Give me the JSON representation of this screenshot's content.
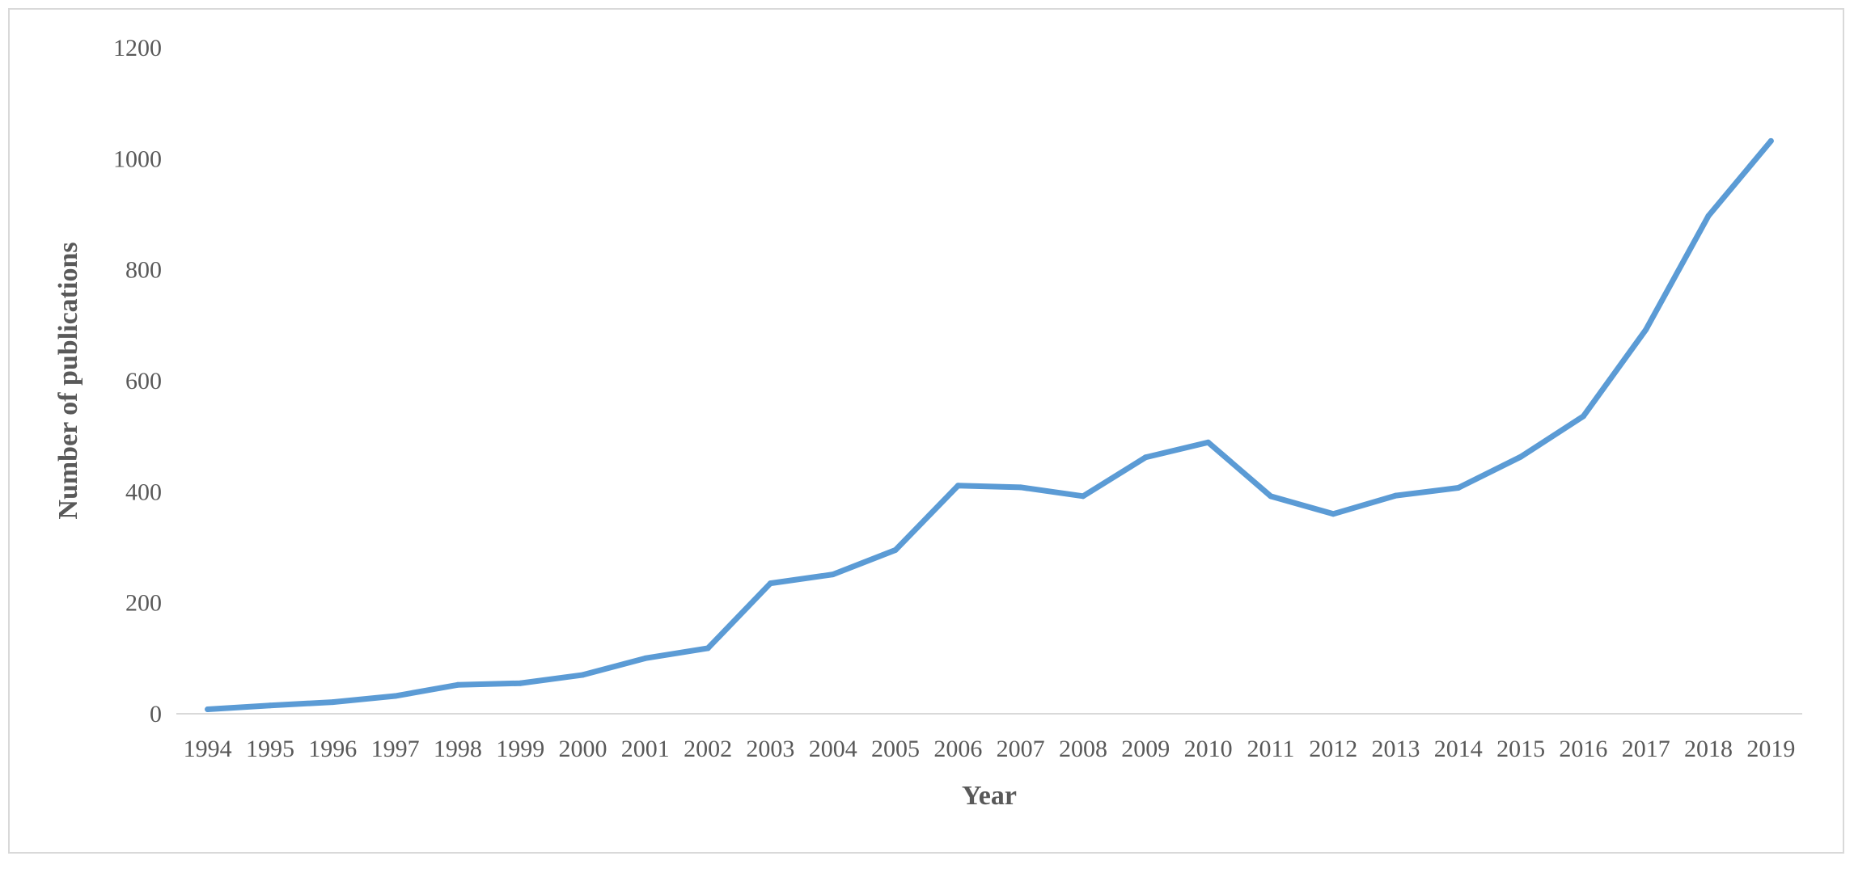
{
  "chart_data": {
    "type": "line",
    "title": "",
    "xlabel": "Year",
    "ylabel": "Number of publications",
    "ylim": [
      0,
      1200
    ],
    "yticks": [
      0,
      200,
      400,
      600,
      800,
      1000,
      1200
    ],
    "grid": false,
    "legend": "none",
    "categories": [
      "1994",
      "1995",
      "1996",
      "1997",
      "1998",
      "1999",
      "2000",
      "2001",
      "2002",
      "2003",
      "2004",
      "2005",
      "2006",
      "2007",
      "2008",
      "2009",
      "2010",
      "2011",
      "2012",
      "2013",
      "2014",
      "2015",
      "2016",
      "2017",
      "2018",
      "2019"
    ],
    "series": [
      {
        "color": "#5b9bd5",
        "values": [
          8,
          15,
          21,
          32,
          52,
          55,
          70,
          100,
          118,
          235,
          251,
          295,
          411,
          408,
          392,
          462,
          489,
          392,
          360,
          393,
          407,
          463,
          536,
          692,
          897,
          1032
        ]
      }
    ]
  }
}
